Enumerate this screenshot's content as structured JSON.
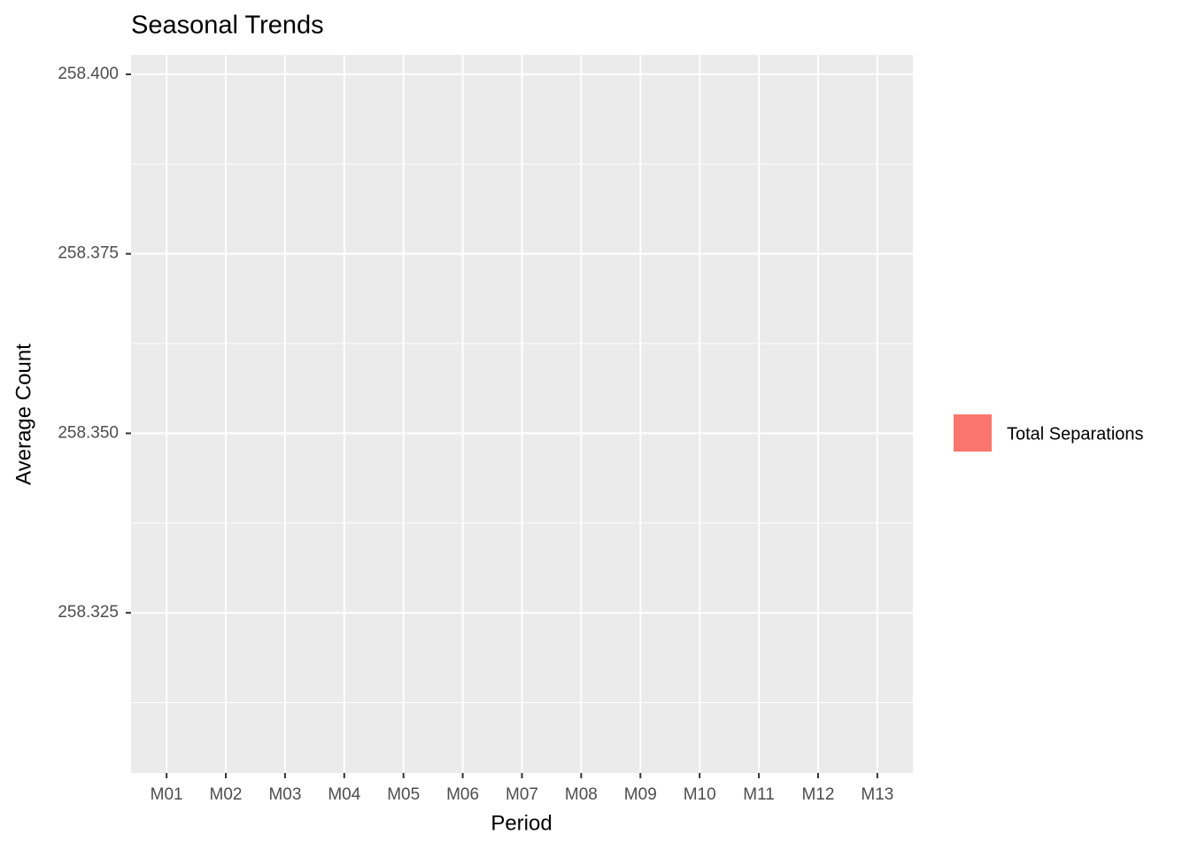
{
  "chart_data": {
    "type": "bar",
    "title": "Seasonal Trends",
    "x_label": "Period",
    "y_label": "Average Count",
    "categories": [
      "M01",
      "M02",
      "M03",
      "M04",
      "M05",
      "M06",
      "M07",
      "M08",
      "M09",
      "M10",
      "M11",
      "M12",
      "M13"
    ],
    "series": [
      {
        "name": "Total Separations",
        "color": "#f8766d",
        "values": [
          null,
          null,
          null,
          null,
          null,
          null,
          null,
          null,
          null,
          null,
          null,
          null,
          null
        ]
      }
    ],
    "ylim": [
      258.3027,
      258.4027
    ],
    "yticks": [
      258.325,
      {
        "value": 258.35,
        "label": "258.350"
      },
      258.375,
      {
        "value": 258.4,
        "label": "258.400"
      }
    ],
    "grid": true,
    "legend": "right"
  }
}
